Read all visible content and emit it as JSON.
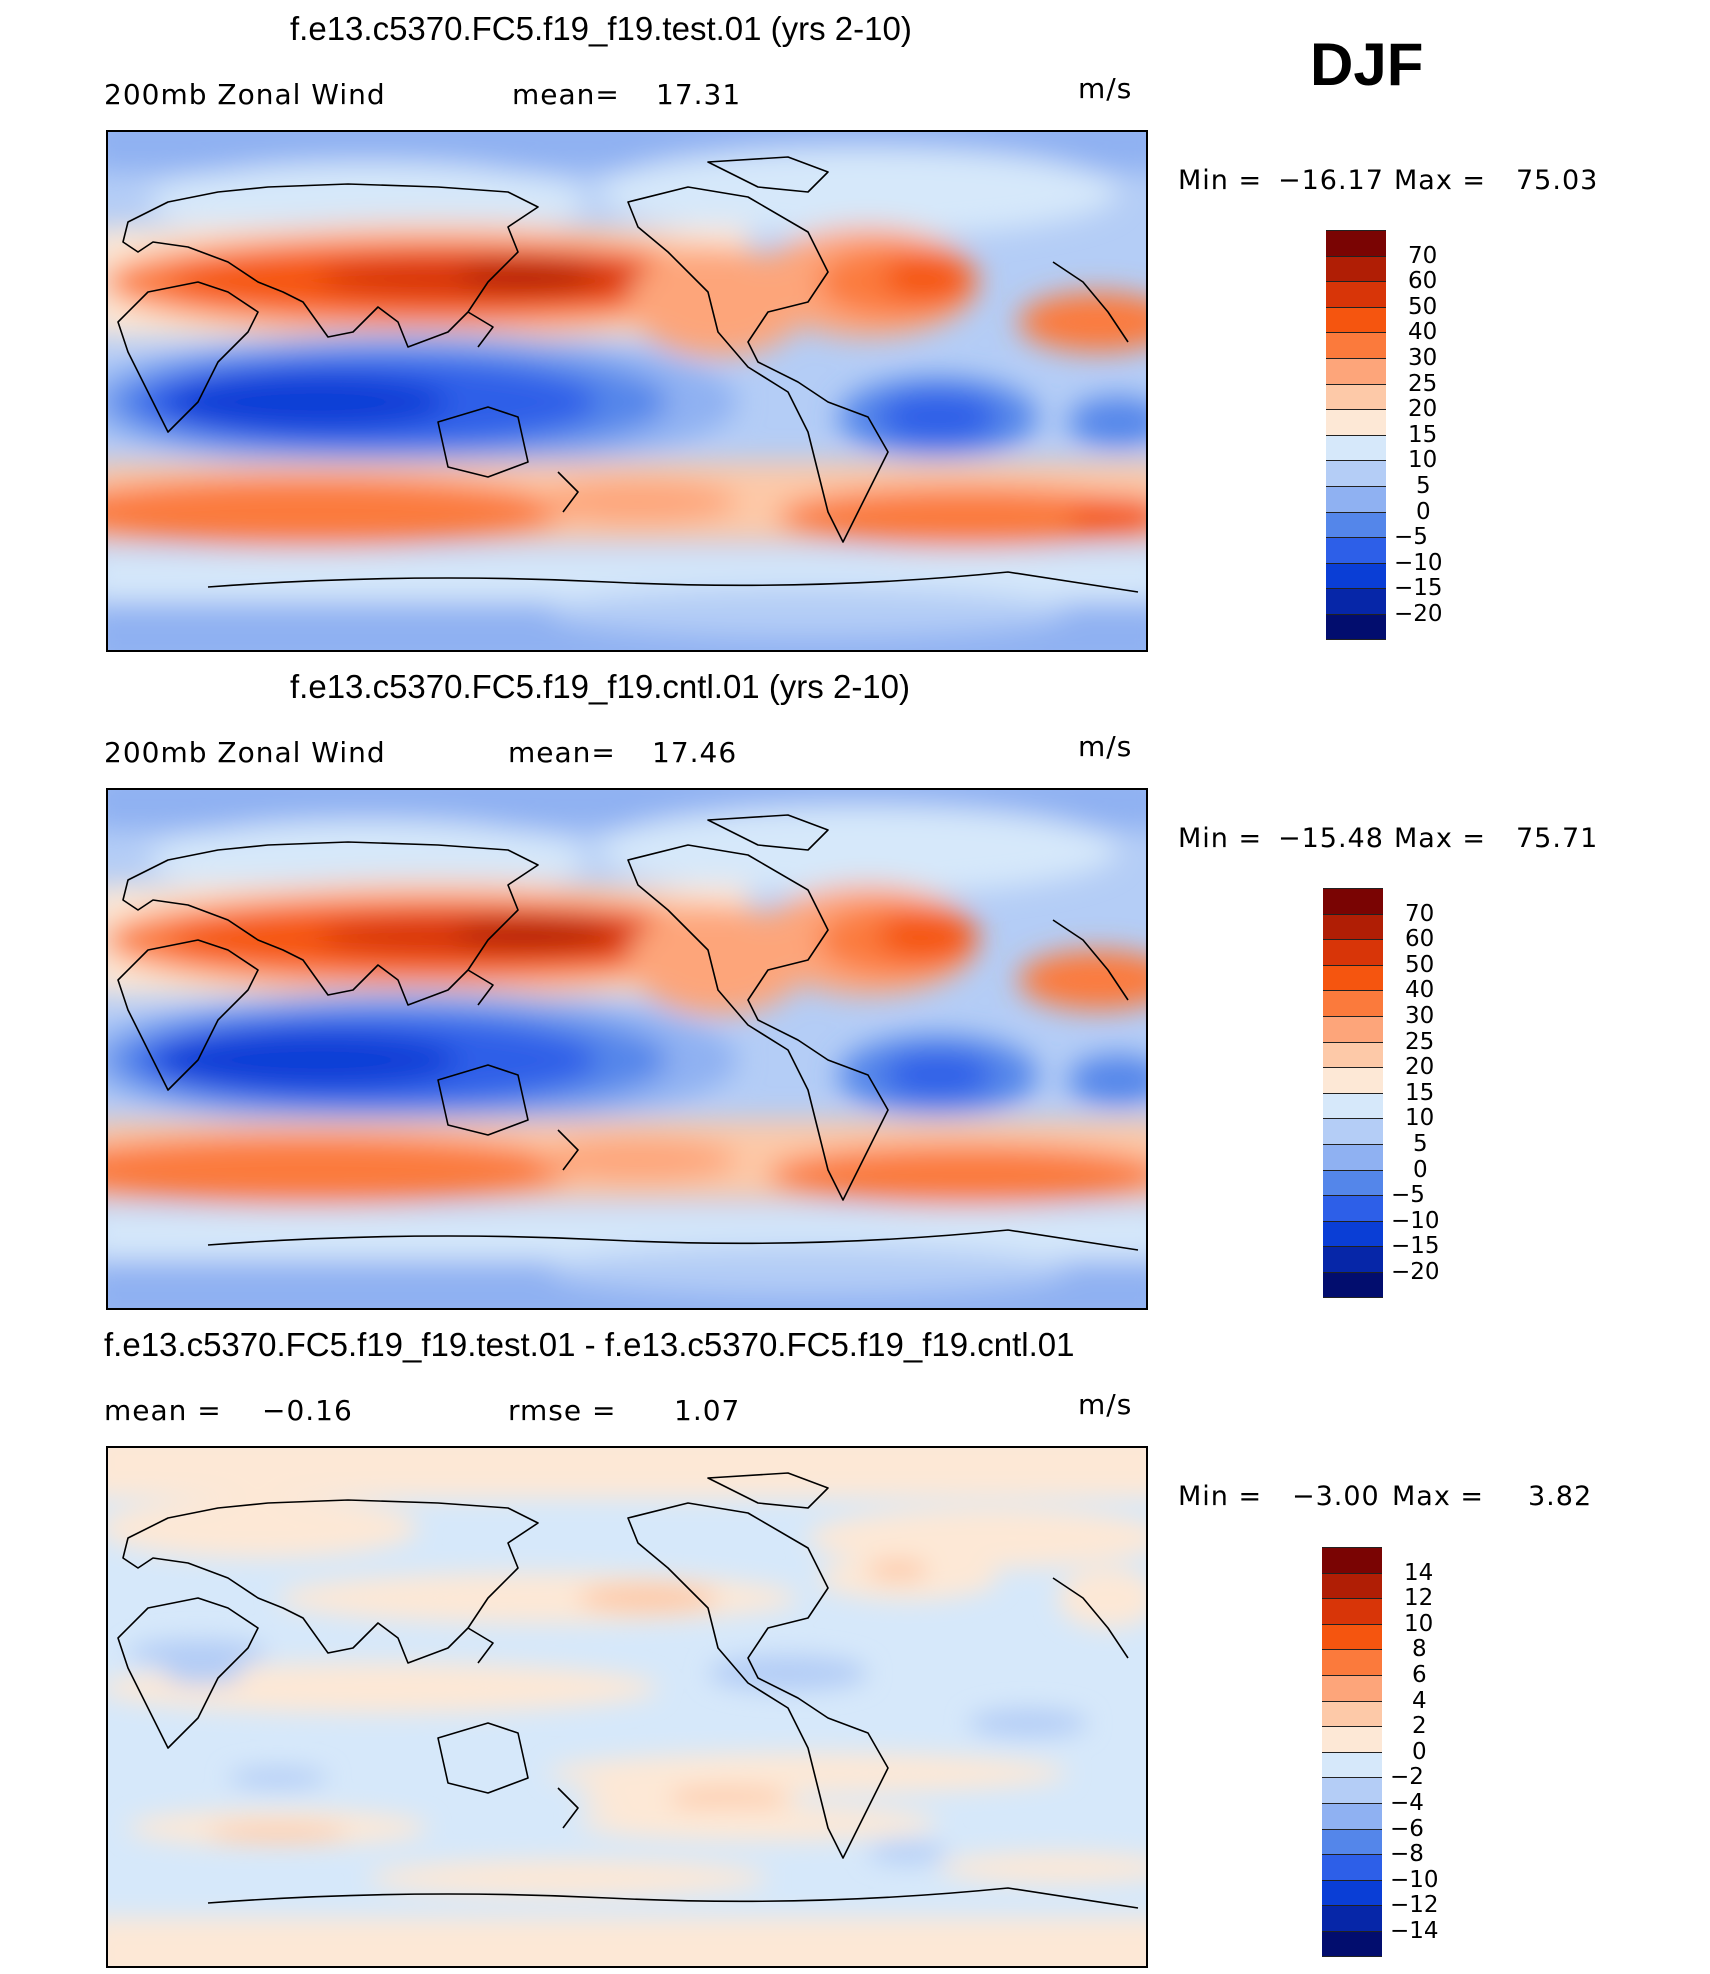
{
  "season": "DJF",
  "panels": [
    {
      "id": "test",
      "title": "f.e13.c5370.FC5.f19_f19.test.01 (yrs 2-10)",
      "left_label": "200mb Zonal Wind",
      "stat_label": "mean=",
      "stat_value": "17.31",
      "units": "m/s",
      "min_label": "Min =",
      "min_value": "−16.17",
      "max_label": "Max =",
      "max_value": "75.03"
    },
    {
      "id": "cntl",
      "title": "f.e13.c5370.FC5.f19_f19.cntl.01 (yrs 2-10)",
      "left_label": "200mb Zonal Wind",
      "stat_label": "mean=",
      "stat_value": "17.46",
      "units": "m/s",
      "min_label": "Min =",
      "min_value": "−15.48",
      "max_label": "Max =",
      "max_value": "75.71"
    },
    {
      "id": "diff",
      "title": "f.e13.c5370.FC5.f19_f19.test.01 - f.e13.c5370.FC5.f19_f19.cntl.01",
      "mean_label": "mean =",
      "mean_value": "−0.16",
      "rmse_label": "rmse =",
      "rmse_value": "1.07",
      "units": "m/s",
      "min_label": "Min =",
      "min_value": "−3.00",
      "max_label": "Max =",
      "max_value": "3.82"
    }
  ],
  "colorbar_wind": {
    "labels": [
      "70",
      "60",
      "50",
      "40",
      "30",
      "25",
      "20",
      "15",
      "10",
      "5",
      "0",
      "−5",
      "−10",
      "−15",
      "−20"
    ],
    "colors": [
      "#7a0403",
      "#b01e05",
      "#d83508",
      "#f5550f",
      "#fb7a3c",
      "#fda57a",
      "#fdc9a8",
      "#fde8d6",
      "#d6e8fa",
      "#b4cdf6",
      "#8fb1f2",
      "#5486ea",
      "#2d5fe8",
      "#0a3ed6",
      "#0626a8",
      "#020d6e"
    ]
  },
  "colorbar_diff": {
    "labels": [
      "14",
      "12",
      "10",
      "8",
      "6",
      "4",
      "2",
      "0",
      "−2",
      "−4",
      "−6",
      "−8",
      "−10",
      "−12",
      "−14"
    ],
    "colors": [
      "#7a0403",
      "#b01e05",
      "#d83508",
      "#f5550f",
      "#fb7a3c",
      "#fda57a",
      "#fdc9a8",
      "#fde8d6",
      "#d6e8fa",
      "#b4cdf6",
      "#8fb1f2",
      "#5486ea",
      "#2d5fe8",
      "#0a3ed6",
      "#0626a8",
      "#020d6e"
    ]
  }
}
